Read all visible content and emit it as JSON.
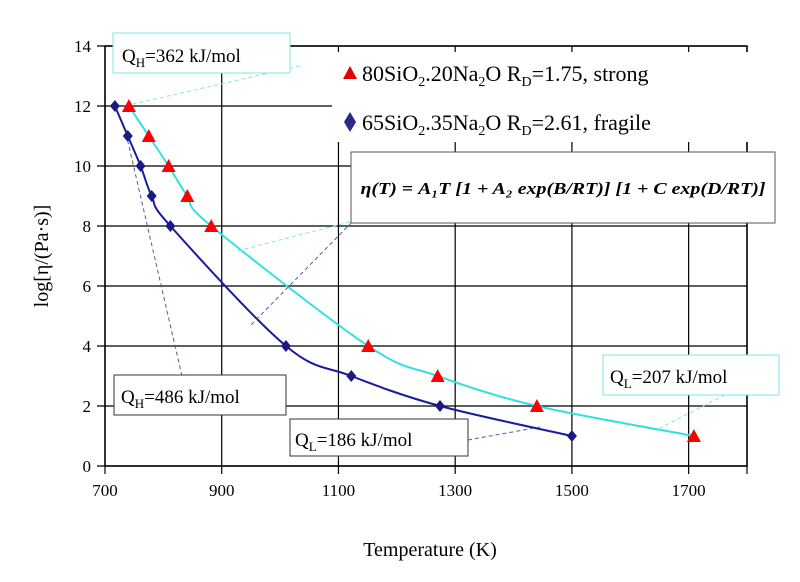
{
  "chart_data": {
    "type": "scatter",
    "xlabel": "Temperature (K)",
    "ylabel": "log[η/(Pa·s)]",
    "xlim": [
      700,
      1800
    ],
    "ylim": [
      0,
      14
    ],
    "xticks": [
      "700",
      "900",
      "1100",
      "1300",
      "1500",
      "1700"
    ],
    "yticks": [
      "0",
      "2",
      "4",
      "6",
      "8",
      "10",
      "12",
      "14"
    ],
    "grid": true,
    "legend_position": "top-right",
    "series": [
      {
        "name": "80SiO2.20Na2O RD=1.75, strong",
        "name_parts": {
          "a": "80SiO",
          "b": "2",
          "c": ".20Na",
          "d": "2",
          "e": "O R",
          "f": "D",
          "g": "=1.75, strong"
        },
        "marker": "triangle",
        "marker_color": "#ff0000",
        "line_color": "#33e0e0",
        "x": [
          741,
          775,
          809,
          841,
          882,
          1151,
          1270,
          1440,
          1709
        ],
        "y": [
          12,
          11,
          10,
          9,
          8,
          4,
          3,
          2,
          1
        ]
      },
      {
        "name": "65SiO2.35Na2O RD=2.61, fragile",
        "name_parts": {
          "a": "65SiO",
          "b": "2",
          "c": ".35Na",
          "d": "2",
          "e": "O R",
          "f": "D",
          "g": "=2.61, fragile"
        },
        "marker": "diamond",
        "marker_color": "#1a1a80",
        "line_color": "#1a1aa0",
        "x": [
          717,
          739,
          761,
          780,
          812,
          1010,
          1122,
          1274,
          1500
        ],
        "y": [
          12,
          11,
          10,
          9,
          8,
          4,
          3,
          2,
          1
        ]
      }
    ],
    "annotations": {
      "qh_strong": {
        "q": "Q",
        "sub": "H",
        "rest": "=362 kJ/mol"
      },
      "qh_fragile": {
        "q": "Q",
        "sub": "H",
        "rest": "=486 kJ/mol"
      },
      "ql_fragile": {
        "q": "Q",
        "sub": "L",
        "rest": "=186 kJ/mol"
      },
      "ql_strong": {
        "q": "Q",
        "sub": "L",
        "rest": "=207 kJ/mol"
      },
      "formula": "η(T) = A₁T [1 + A₂ exp(B/RT)] [1 + C exp(D/RT)]"
    }
  }
}
